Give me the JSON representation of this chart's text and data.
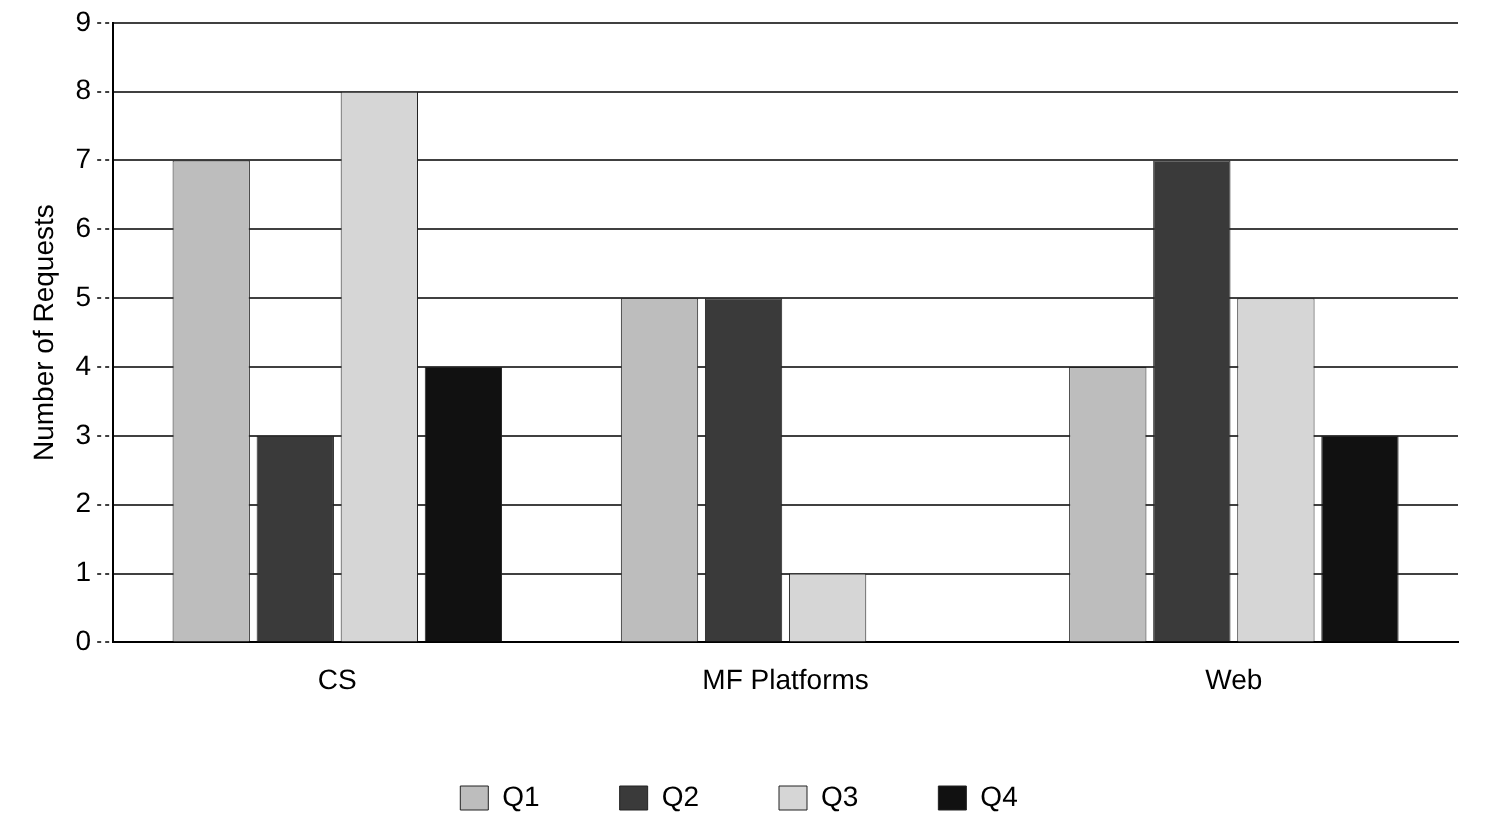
{
  "chart_data": {
    "type": "bar",
    "ylabel": "Number of Requests",
    "categories": [
      "CS",
      "MF Platforms",
      "Web"
    ],
    "series": [
      {
        "name": "Q1",
        "color": "#bdbdbd",
        "values": [
          7,
          5,
          4
        ]
      },
      {
        "name": "Q2",
        "color": "#3a3a3a",
        "values": [
          3,
          5,
          7
        ]
      },
      {
        "name": "Q3",
        "color": "#d6d6d6",
        "values": [
          8,
          1,
          5
        ]
      },
      {
        "name": "Q4",
        "color": "#111111",
        "values": [
          4,
          0,
          3
        ]
      }
    ],
    "ylim": [
      0,
      9
    ],
    "yticks": [
      0,
      1,
      2,
      3,
      4,
      5,
      6,
      7,
      8,
      9
    ],
    "grid": "y",
    "line_style": "dotted",
    "legend": "bottom"
  }
}
